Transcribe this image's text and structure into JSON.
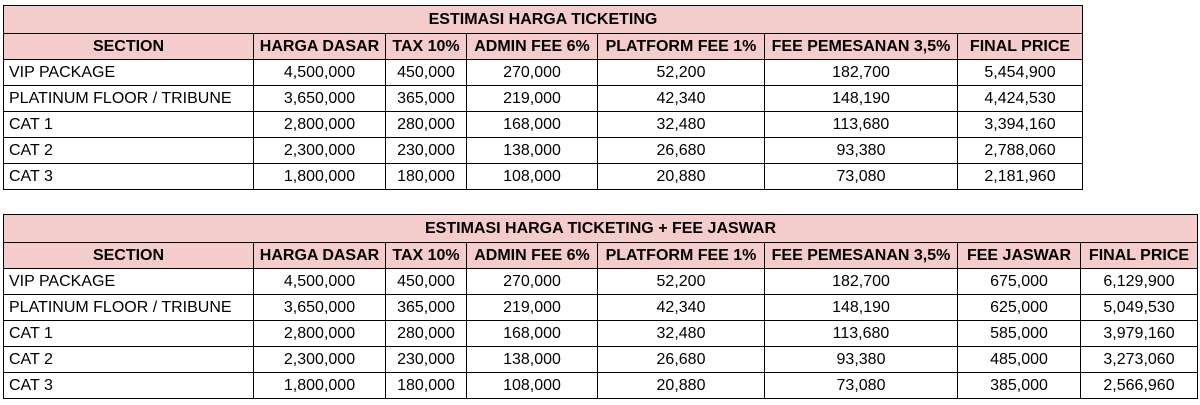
{
  "tables": [
    {
      "title": "ESTIMASI HARGA TICKETING",
      "headers": [
        "SECTION",
        "HARGA DASAR",
        "TAX 10%",
        "ADMIN FEE 6%",
        "PLATFORM FEE 1%",
        "FEE PEMESANAN 3,5%",
        "FINAL PRICE"
      ],
      "rows": [
        [
          "VIP PACKAGE",
          "4,500,000",
          "450,000",
          "270,000",
          "52,200",
          "182,700",
          "5,454,900"
        ],
        [
          "PLATINUM FLOOR / TRIBUNE",
          "3,650,000",
          "365,000",
          "219,000",
          "42,340",
          "148,190",
          "4,424,530"
        ],
        [
          "CAT 1",
          "2,800,000",
          "280,000",
          "168,000",
          "32,480",
          "113,680",
          "3,394,160"
        ],
        [
          "CAT 2",
          "2,300,000",
          "230,000",
          "138,000",
          "26,680",
          "93,380",
          "2,788,060"
        ],
        [
          "CAT 3",
          "1,800,000",
          "180,000",
          "108,000",
          "20,880",
          "73,080",
          "2,181,960"
        ]
      ]
    },
    {
      "title": "ESTIMASI HARGA TICKETING + FEE JASWAR",
      "headers": [
        "SECTION",
        "HARGA DASAR",
        "TAX 10%",
        "ADMIN FEE 6%",
        "PLATFORM FEE 1%",
        "FEE PEMESANAN 3,5%",
        "FEE JASWAR",
        "FINAL PRICE"
      ],
      "rows": [
        [
          "VIP PACKAGE",
          "4,500,000",
          "450,000",
          "270,000",
          "52,200",
          "182,700",
          "675,000",
          "6,129,900"
        ],
        [
          "PLATINUM FLOOR / TRIBUNE",
          "3,650,000",
          "365,000",
          "219,000",
          "42,340",
          "148,190",
          "625,000",
          "5,049,530"
        ],
        [
          "CAT 1",
          "2,800,000",
          "280,000",
          "168,000",
          "32,480",
          "113,680",
          "585,000",
          "3,979,160"
        ],
        [
          "CAT 2",
          "2,300,000",
          "230,000",
          "138,000",
          "26,680",
          "93,380",
          "485,000",
          "3,273,060"
        ],
        [
          "CAT 3",
          "1,800,000",
          "180,000",
          "108,000",
          "20,880",
          "73,080",
          "385,000",
          "2,566,960"
        ]
      ]
    }
  ]
}
